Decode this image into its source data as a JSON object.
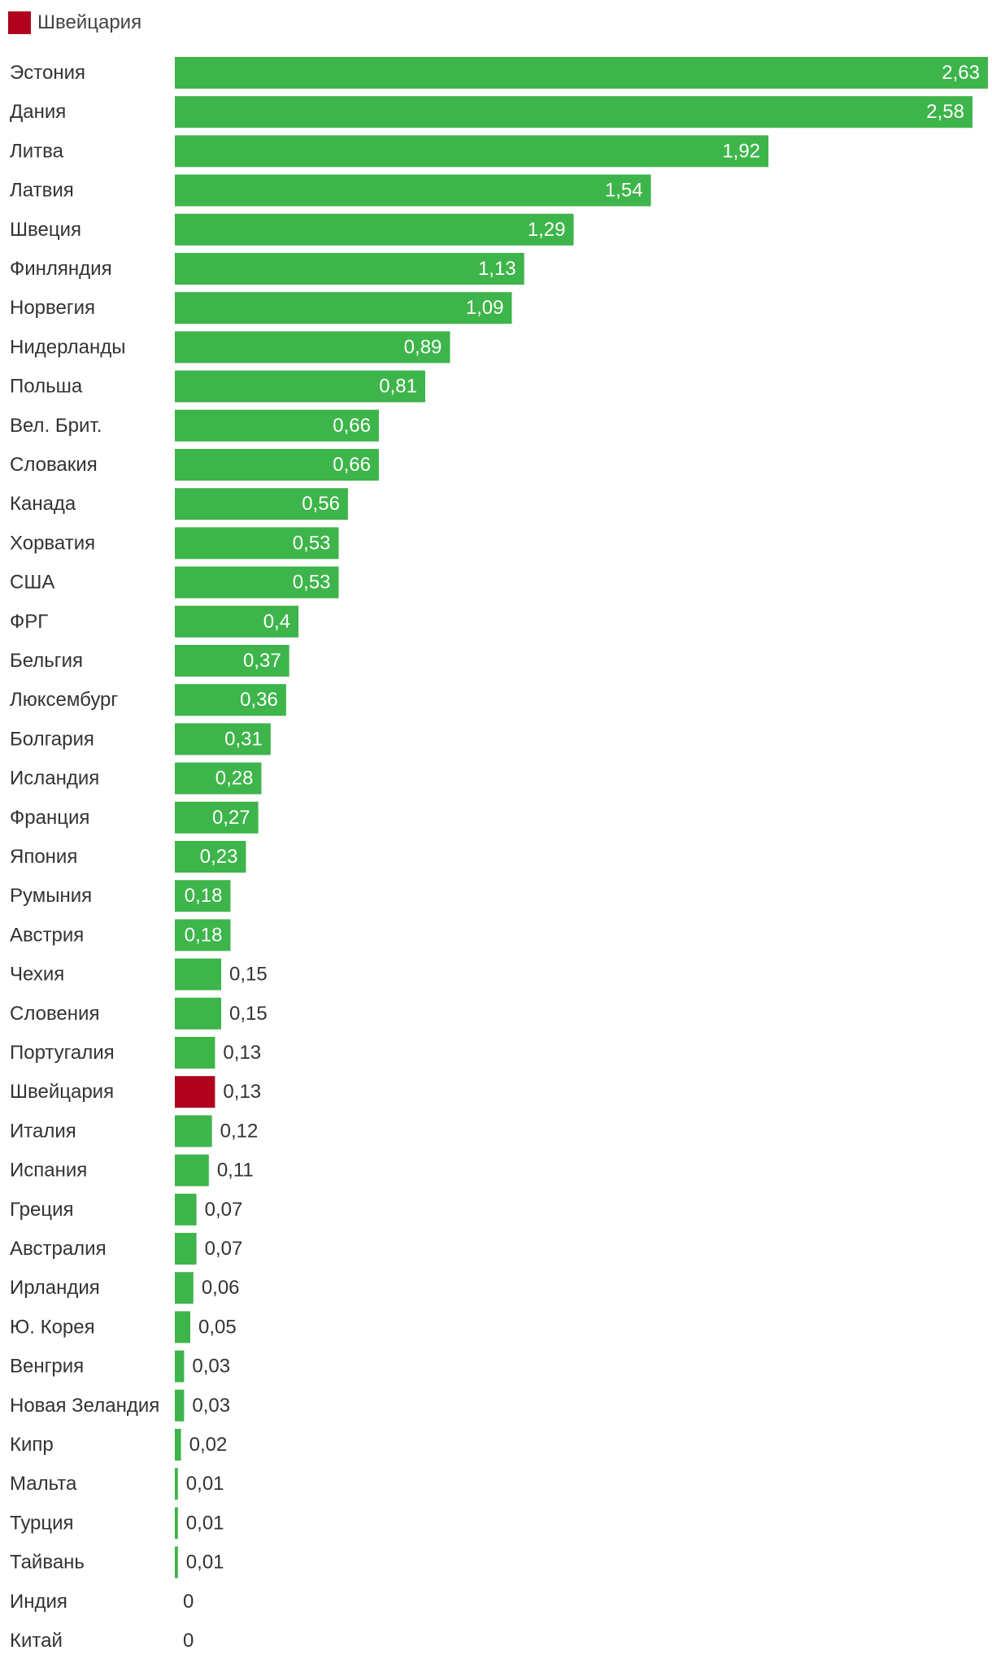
{
  "chart_data": {
    "type": "bar",
    "orientation": "horizontal",
    "legend": {
      "position": "top-left",
      "entries": [
        {
          "name": "Швейцария",
          "color": "#b0001e"
        }
      ]
    },
    "colors": {
      "default": "#3db54a",
      "highlight": "#b0001e",
      "label_inside": "#ffffff",
      "label_outside": "#333333"
    },
    "highlight_category": "Швейцария",
    "grid": false,
    "xlim": [
      0,
      2.63
    ],
    "categories": [
      "Эстония",
      "Дания",
      "Литва",
      "Латвия",
      "Швеция",
      "Финляндия",
      "Норвегия",
      "Нидерланды",
      "Польша",
      "Вел. Брит.",
      "Словакия",
      "Канада",
      "Хорватия",
      "США",
      "ФРГ",
      "Бельгия",
      "Люксембург",
      "Болгария",
      "Исландия",
      "Франция",
      "Япония",
      "Румыния",
      "Австрия",
      "Чехия",
      "Словения",
      "Португалия",
      "Швейцария",
      "Италия",
      "Испания",
      "Греция",
      "Австралия",
      "Ирландия",
      "Ю. Корея",
      "Венгрия",
      "Новая Зеландия",
      "Кипр",
      "Мальта",
      "Турция",
      "Тайвань",
      "Индия",
      "Китай"
    ],
    "values": [
      2.63,
      2.58,
      1.92,
      1.54,
      1.29,
      1.13,
      1.09,
      0.89,
      0.81,
      0.66,
      0.66,
      0.56,
      0.53,
      0.53,
      0.4,
      0.37,
      0.36,
      0.31,
      0.28,
      0.27,
      0.23,
      0.18,
      0.18,
      0.15,
      0.15,
      0.13,
      0.13,
      0.12,
      0.11,
      0.07,
      0.07,
      0.06,
      0.05,
      0.03,
      0.03,
      0.02,
      0.01,
      0.01,
      0.01,
      0,
      0
    ],
    "value_labels": [
      "2,63",
      "2,58",
      "1,92",
      "1,54",
      "1,29",
      "1,13",
      "1,09",
      "0,89",
      "0,81",
      "0,66",
      "0,66",
      "0,56",
      "0,53",
      "0,53",
      "0,4",
      "0,37",
      "0,36",
      "0,31",
      "0,28",
      "0,27",
      "0,23",
      "0,18",
      "0,18",
      "0,15",
      "0,15",
      "0,13",
      "0,13",
      "0,12",
      "0,11",
      "0,07",
      "0,07",
      "0,06",
      "0,05",
      "0,03",
      "0,03",
      "0,02",
      "0,01",
      "0,01",
      "0,01",
      "0",
      "0"
    ]
  }
}
